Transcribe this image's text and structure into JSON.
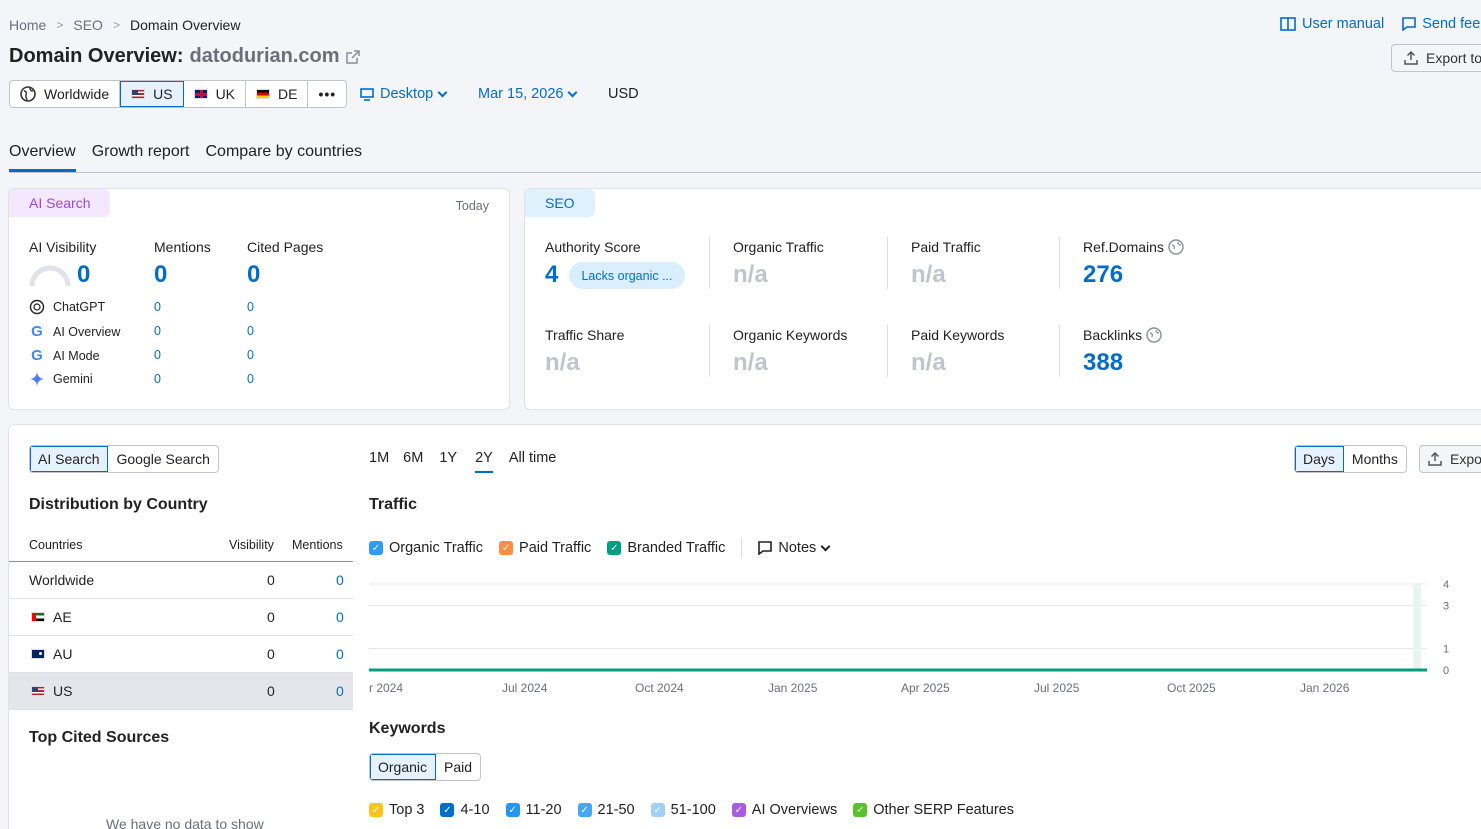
{
  "breadcrumb": [
    "Home",
    "SEO",
    "Domain Overview"
  ],
  "header": {
    "user_manual": "User manual",
    "send_feedback": "Send fee",
    "title_prefix": "Domain Overview:",
    "domain": "datodurian.com",
    "export_label": "Export to"
  },
  "locations": [
    {
      "label": "Worldwide",
      "flag": "globe-icon"
    },
    {
      "label": "US",
      "flag": "us-flag"
    },
    {
      "label": "UK",
      "flag": "uk-flag"
    },
    {
      "label": "DE",
      "flag": "de-flag"
    }
  ],
  "device": "Desktop",
  "date": "Mar 15, 2026",
  "currency": "USD",
  "tabs": [
    "Overview",
    "Growth report",
    "Compare by countries"
  ],
  "ai_card": {
    "badge": "AI Search",
    "today": "Today",
    "visibility_label": "AI Visibility",
    "visibility_value": "0",
    "mentions_label": "Mentions",
    "mentions_value": "0",
    "cited_label": "Cited Pages",
    "cited_value": "0",
    "engines": [
      {
        "name": "ChatGPT",
        "mentions": "0",
        "cited": "0"
      },
      {
        "name": "AI Overview",
        "mentions": "0",
        "cited": "0"
      },
      {
        "name": "AI Mode",
        "mentions": "0",
        "cited": "0"
      },
      {
        "name": "Gemini",
        "mentions": "0",
        "cited": "0"
      }
    ]
  },
  "seo_card": {
    "badge": "SEO",
    "authority_label": "Authority Score",
    "authority_value": "4",
    "authority_pill": "Lacks organic ...",
    "organic_traffic_label": "Organic Traffic",
    "organic_traffic_value": "n/a",
    "paid_traffic_label": "Paid Traffic",
    "paid_traffic_value": "n/a",
    "ref_domains_label": "Ref.Domains",
    "ref_domains_value": "276",
    "traffic_share_label": "Traffic Share",
    "traffic_share_value": "n/a",
    "organic_keywords_label": "Organic Keywords",
    "organic_keywords_value": "n/a",
    "paid_keywords_label": "Paid Keywords",
    "paid_keywords_value": "n/a",
    "backlinks_label": "Backlinks",
    "backlinks_value": "388"
  },
  "lower": {
    "search_toggle": [
      "AI Search",
      "Google Search"
    ],
    "distribution_title": "Distribution by Country",
    "table_headers": [
      "Countries",
      "Visibility",
      "Mentions"
    ],
    "rows": [
      {
        "country": "Worldwide",
        "visibility": "0",
        "mentions": "0"
      },
      {
        "country": "AE",
        "visibility": "0",
        "mentions": "0"
      },
      {
        "country": "AU",
        "visibility": "0",
        "mentions": "0"
      },
      {
        "country": "US",
        "visibility": "0",
        "mentions": "0"
      }
    ],
    "top_cited_title": "Top Cited Sources",
    "no_data": "We have no data to show",
    "periods": [
      "1M",
      "6M",
      "1Y",
      "2Y",
      "All time"
    ],
    "granularity": [
      "Days",
      "Months"
    ],
    "export_label": "Expo",
    "traffic_title": "Traffic",
    "traffic_legend": [
      "Organic Traffic",
      "Paid Traffic",
      "Branded Traffic"
    ],
    "notes_label": "Notes",
    "keywords_title": "Keywords",
    "keywords_toggle": [
      "Organic",
      "Paid"
    ],
    "keywords_legend": [
      "Top 3",
      "4-10",
      "11-20",
      "21-50",
      "51-100",
      "AI Overviews",
      "Other SERP Features"
    ]
  },
  "chart_data": {
    "type": "line",
    "x": [
      "r 2024",
      "Jul 2024",
      "Oct 2024",
      "Jan 2025",
      "Apr 2025",
      "Jul 2025",
      "Oct 2025",
      "Jan 2026"
    ],
    "yticks": [
      "0",
      "1",
      "3",
      "4"
    ],
    "series": [
      {
        "name": "Branded Traffic",
        "values": [
          0,
          0,
          0,
          0,
          0,
          0,
          0,
          0
        ],
        "color": "#009f81"
      }
    ],
    "ylim": [
      0,
      4
    ]
  },
  "colors": {
    "accent": "#006dca",
    "organic": "#2e9cf5",
    "paid": "#ff8c43",
    "branded": "#009f81"
  }
}
